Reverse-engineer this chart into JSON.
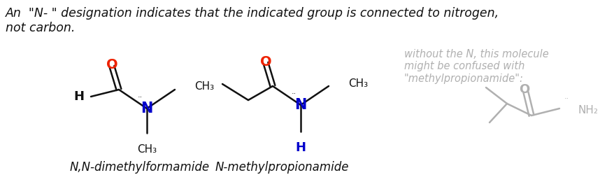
{
  "title_text": "An  \"N- \" designation indicates that the indicated group is connected to nitrogen,\nnot carbon.",
  "title_fontsize": 12.5,
  "title_style": "italic",
  "label1": "N,N-dimethylformamide",
  "label2": "N-methylpropionamide",
  "label_fontsize": 12,
  "label_style": "italic",
  "side_note": "without the N, this molecule\nmight be confused with\n\"methylpropionamide\":",
  "side_note_fontsize": 10.5,
  "side_note_color": "#b0b0b0",
  "bg_color": "#ffffff",
  "black": "#111111",
  "red": "#ee2200",
  "blue": "#0000cc",
  "gray": "#b0b0b0"
}
